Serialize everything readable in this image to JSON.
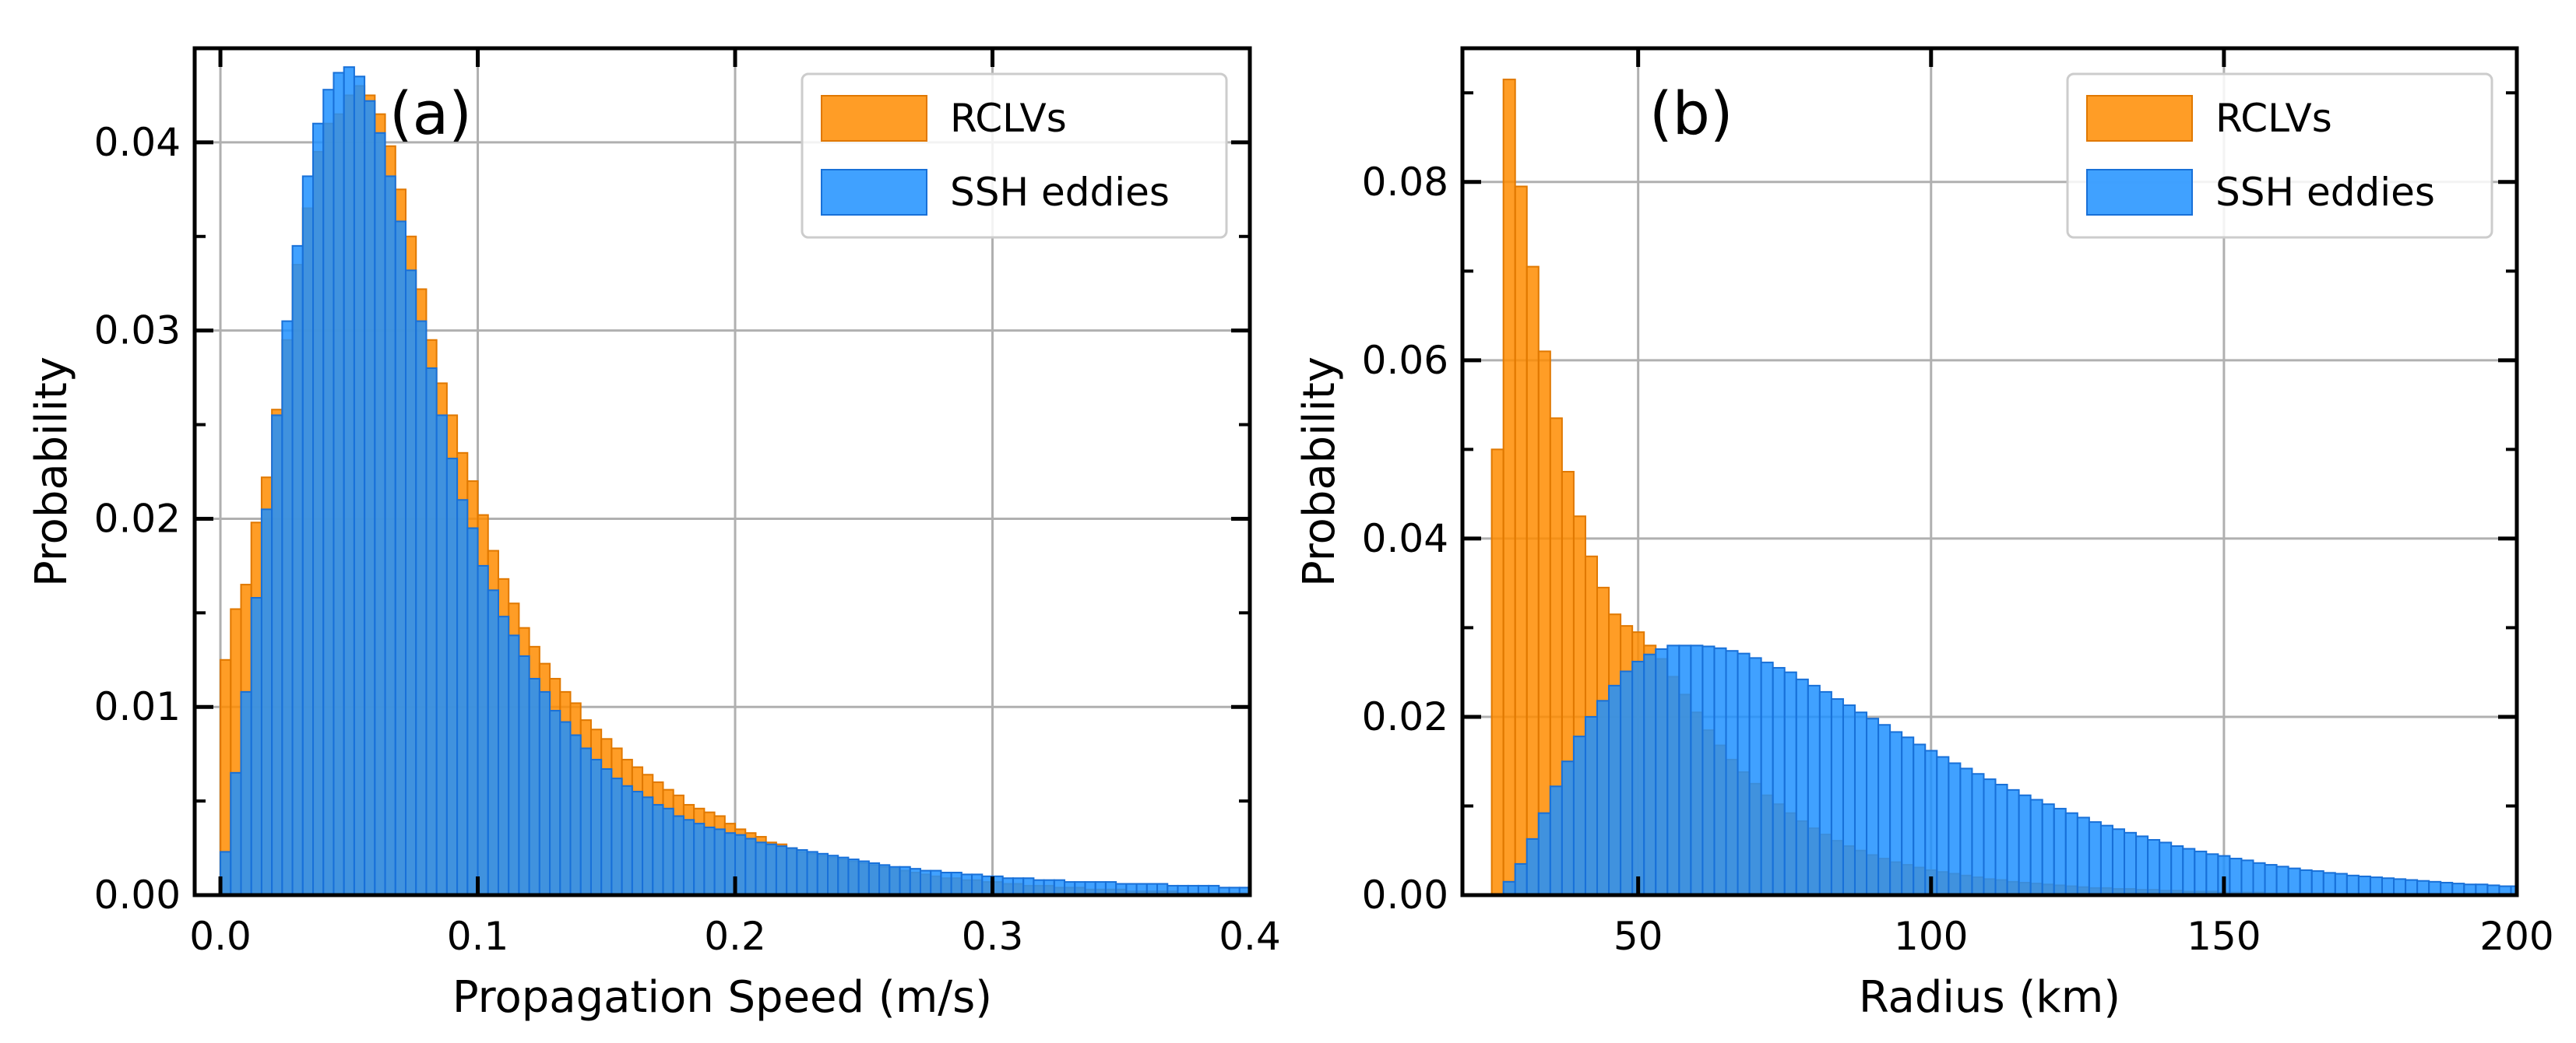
{
  "colors": {
    "rclv": "#ff8c00",
    "ssh": "#1e90ff",
    "rclv_edge": "#e07800",
    "ssh_edge": "#1870d8",
    "grid": "#b0b0b0"
  },
  "chart_data": [
    {
      "type": "histogram",
      "panel_label": "(a)",
      "xlabel": "Propagation Speed (m/s)",
      "ylabel": "Probability",
      "xlim": [
        -0.01,
        0.4
      ],
      "ylim": [
        0,
        0.045
      ],
      "xticks": [
        0.0,
        0.1,
        0.2,
        0.3,
        0.4
      ],
      "xtick_labels": [
        "0.0",
        "0.1",
        "0.2",
        "0.3",
        "0.4"
      ],
      "yticks": [
        0.0,
        0.01,
        0.02,
        0.03,
        0.04
      ],
      "ytick_labels": [
        "0.00",
        "0.01",
        "0.02",
        "0.03",
        "0.04"
      ],
      "grid": true,
      "legend_position": "top-right",
      "bin_start": 0.0,
      "bin_width": 0.004,
      "series": [
        {
          "name": "RCLVs",
          "color_key": "rclv",
          "values": [
            0.0125,
            0.0152,
            0.0165,
            0.0198,
            0.0222,
            0.0258,
            0.0295,
            0.0335,
            0.0365,
            0.0395,
            0.041,
            0.0415,
            0.0425,
            0.043,
            0.0425,
            0.0415,
            0.0398,
            0.0375,
            0.035,
            0.0322,
            0.0295,
            0.0272,
            0.0255,
            0.0235,
            0.022,
            0.0202,
            0.0183,
            0.0168,
            0.0155,
            0.0142,
            0.0132,
            0.0123,
            0.0115,
            0.0108,
            0.0102,
            0.0093,
            0.0088,
            0.0083,
            0.0078,
            0.0072,
            0.0068,
            0.0064,
            0.006,
            0.0056,
            0.0053,
            0.0048,
            0.0046,
            0.0044,
            0.0042,
            0.0038,
            0.0035,
            0.0033,
            0.0031,
            0.0028,
            0.0027,
            0.0025,
            0.0023,
            0.0022,
            0.0021,
            0.002,
            0.0019,
            0.0018,
            0.0017,
            0.0016,
            0.0015,
            0.0014,
            0.0013,
            0.0012,
            0.0011,
            0.001,
            0.0009,
            0.0009,
            0.0008,
            0.0008,
            0.0007,
            0.0007,
            0.0006,
            0.0006,
            0.0005,
            0.0005,
            0.0005,
            0.0004,
            0.0004,
            0.0004,
            0.0003,
            0.0003,
            0.0003,
            0.0003,
            0.0002,
            0.0002,
            0.0002,
            0.0002,
            0.0002,
            0.0001,
            0.0001,
            0.0001,
            0.0001,
            0.0001,
            0.0001,
            0.0001
          ]
        },
        {
          "name": "SSH eddies",
          "color_key": "ssh",
          "values": [
            0.0023,
            0.0065,
            0.0108,
            0.0158,
            0.0205,
            0.0255,
            0.0305,
            0.0345,
            0.0382,
            0.041,
            0.0428,
            0.0437,
            0.044,
            0.0435,
            0.0422,
            0.0405,
            0.0382,
            0.0358,
            0.0332,
            0.0305,
            0.028,
            0.0255,
            0.0232,
            0.021,
            0.0195,
            0.0175,
            0.0162,
            0.0148,
            0.0138,
            0.0127,
            0.0115,
            0.0108,
            0.0098,
            0.0092,
            0.0085,
            0.0078,
            0.0072,
            0.0067,
            0.0062,
            0.0058,
            0.0055,
            0.0052,
            0.0048,
            0.0046,
            0.0042,
            0.004,
            0.0038,
            0.0036,
            0.0035,
            0.0033,
            0.0032,
            0.003,
            0.0028,
            0.0027,
            0.0026,
            0.0025,
            0.0024,
            0.0023,
            0.0022,
            0.0021,
            0.002,
            0.0019,
            0.0018,
            0.0017,
            0.0016,
            0.0015,
            0.0015,
            0.0014,
            0.0013,
            0.0013,
            0.0012,
            0.0012,
            0.0011,
            0.0011,
            0.001,
            0.001,
            0.0009,
            0.0009,
            0.0009,
            0.0008,
            0.0008,
            0.0008,
            0.0007,
            0.0007,
            0.0007,
            0.0007,
            0.0007,
            0.0006,
            0.0006,
            0.0006,
            0.0006,
            0.0006,
            0.0005,
            0.0005,
            0.0005,
            0.0005,
            0.0005,
            0.0004,
            0.0004,
            0.0004
          ]
        }
      ]
    },
    {
      "type": "histogram",
      "panel_label": "(b)",
      "xlabel": "Radius (km)",
      "ylabel": "Probability",
      "xlim": [
        20,
        200
      ],
      "ylim": [
        0,
        0.095
      ],
      "xticks": [
        50,
        100,
        150,
        200
      ],
      "xtick_labels": [
        "50",
        "100",
        "150",
        "200"
      ],
      "yticks": [
        0.0,
        0.02,
        0.04,
        0.06,
        0.08
      ],
      "ytick_labels": [
        "0.00",
        "0.02",
        "0.04",
        "0.06",
        "0.08"
      ],
      "grid": true,
      "legend_position": "top-right",
      "bin_start": 25,
      "bin_width": 2,
      "series": [
        {
          "name": "RCLVs",
          "color_key": "rclv",
          "values": [
            0.05,
            0.0915,
            0.0795,
            0.0705,
            0.061,
            0.0535,
            0.0475,
            0.0425,
            0.038,
            0.0345,
            0.0315,
            0.0302,
            0.0295,
            0.028,
            0.0265,
            0.0245,
            0.0225,
            0.0205,
            0.0185,
            0.0168,
            0.0152,
            0.0138,
            0.0125,
            0.0112,
            0.0102,
            0.0092,
            0.0083,
            0.0075,
            0.0068,
            0.0061,
            0.0055,
            0.005,
            0.0045,
            0.0041,
            0.0037,
            0.0034,
            0.0031,
            0.0028,
            0.0026,
            0.0024,
            0.0022,
            0.002,
            0.0018,
            0.0017,
            0.0015,
            0.0014,
            0.0013,
            0.0012,
            0.0011,
            0.001,
            0.0009,
            0.0008,
            0.0008,
            0.0007,
            0.0007,
            0.0006,
            0.0006,
            0.0005,
            0.0005,
            0.0004,
            0.0004,
            0.0004,
            0.0003,
            0.0003,
            0.0003,
            0.0003,
            0.0002,
            0.0002,
            0.0002,
            0.0002,
            0.0002,
            0.0002,
            0.0001,
            0.0001,
            0.0001,
            0.0001,
            0.0001,
            0.0001,
            0.0001,
            0.0001,
            0.0001,
            0.0001,
            0.0001,
            0.0001,
            0.0001,
            0.0001,
            0.0001,
            0.0001
          ]
        },
        {
          "name": "SSH eddies",
          "color_key": "ssh",
          "values": [
            0.0,
            0.0015,
            0.0035,
            0.0063,
            0.0092,
            0.0122,
            0.015,
            0.0178,
            0.02,
            0.0218,
            0.0235,
            0.0251,
            0.0262,
            0.027,
            0.0276,
            0.028,
            0.028,
            0.028,
            0.0279,
            0.0277,
            0.0274,
            0.0271,
            0.0266,
            0.0261,
            0.0255,
            0.025,
            0.0242,
            0.0235,
            0.0228,
            0.022,
            0.0213,
            0.0205,
            0.0198,
            0.0191,
            0.0183,
            0.0177,
            0.0169,
            0.0162,
            0.0155,
            0.0148,
            0.0142,
            0.0136,
            0.013,
            0.0124,
            0.0118,
            0.0112,
            0.0107,
            0.0102,
            0.0097,
            0.0092,
            0.0087,
            0.0082,
            0.0078,
            0.0074,
            0.007,
            0.0066,
            0.0062,
            0.0059,
            0.0055,
            0.0052,
            0.0049,
            0.0046,
            0.0044,
            0.0041,
            0.0039,
            0.0036,
            0.0034,
            0.0032,
            0.003,
            0.0028,
            0.0027,
            0.0025,
            0.0024,
            0.0022,
            0.0021,
            0.002,
            0.0019,
            0.0018,
            0.0017,
            0.0016,
            0.0015,
            0.0014,
            0.0013,
            0.0012,
            0.0012,
            0.0011,
            0.001,
            0.001
          ]
        }
      ]
    }
  ]
}
